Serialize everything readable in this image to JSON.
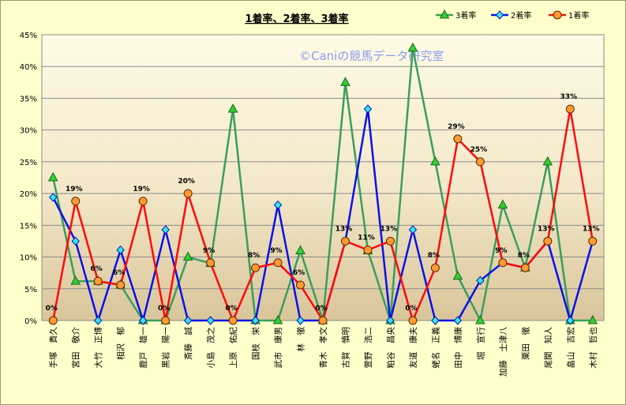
{
  "chart_data": {
    "type": "line",
    "title": "1着率、2着率、3着率",
    "watermark": "©Caniの競馬データ研究室",
    "categories": [
      "手塚　貴久",
      "宮田　敬介",
      "大竹　正博",
      "相沢　郁",
      "鹿戸　雄一",
      "黒岩　陽一",
      "斎藤　誠",
      "小島　茂之",
      "上原　佑紀",
      "国枝　栄",
      "武市　康男",
      "林　徹",
      "青木　孝文",
      "古賀　慎明",
      "萱野　浩二",
      "粕谷　昌央",
      "友道　康夫",
      "蛯名　正義",
      "田中　博康",
      "堀　宣行",
      "加藤　士津八",
      "栗田　徹",
      "尾関　知人",
      "畠山　吉宏",
      "木村　哲也"
    ],
    "ylim": [
      0,
      45
    ],
    "yticks": [
      "0%",
      "5%",
      "10%",
      "15%",
      "20%",
      "25%",
      "30%",
      "35%",
      "40%",
      "45%"
    ],
    "grid": true,
    "legend_position": "top-right",
    "series": [
      {
        "name": "3着率",
        "color": "#3a9e5e",
        "marker": "triangle",
        "marker_fill": "#33cc33",
        "values": [
          22.5,
          6.2,
          6.2,
          5.6,
          0,
          0,
          10,
          9,
          33.3,
          0,
          0,
          11,
          0,
          37.5,
          11,
          0,
          42.9,
          25,
          7,
          0,
          18.2,
          8.3,
          25,
          0,
          0
        ]
      },
      {
        "name": "2着率",
        "color": "#0a12e6",
        "marker": "diamond",
        "marker_fill": "#33e6f2",
        "values": [
          19.4,
          12.5,
          0,
          11.1,
          0,
          14.3,
          0,
          0,
          0,
          0,
          18.2,
          0,
          0,
          12.5,
          33.3,
          0,
          14.3,
          0,
          0,
          6.3,
          9.1,
          8.3,
          12.5,
          0,
          12.5
        ]
      },
      {
        "name": "1着率",
        "color": "#ff0a0a",
        "marker": "circle",
        "marker_fill": "#ff9933",
        "values": [
          0,
          18.8,
          6.2,
          5.6,
          18.8,
          0,
          20,
          9.1,
          0,
          8.3,
          9.1,
          5.6,
          0,
          12.5,
          11.1,
          12.5,
          0,
          8.3,
          28.6,
          25,
          9.1,
          8.3,
          12.5,
          33.3,
          12.5
        ],
        "labels": [
          "0%",
          "19%",
          "6%",
          "6%",
          "19%",
          "0%",
          "20%",
          "9%",
          "0%",
          "8%",
          "9%",
          "6%",
          "0%",
          "13%",
          "11%",
          "13%",
          "0%",
          "8%",
          "29%",
          "25%",
          "9%",
          "8%",
          "13%",
          "33%",
          "13%"
        ]
      }
    ]
  }
}
